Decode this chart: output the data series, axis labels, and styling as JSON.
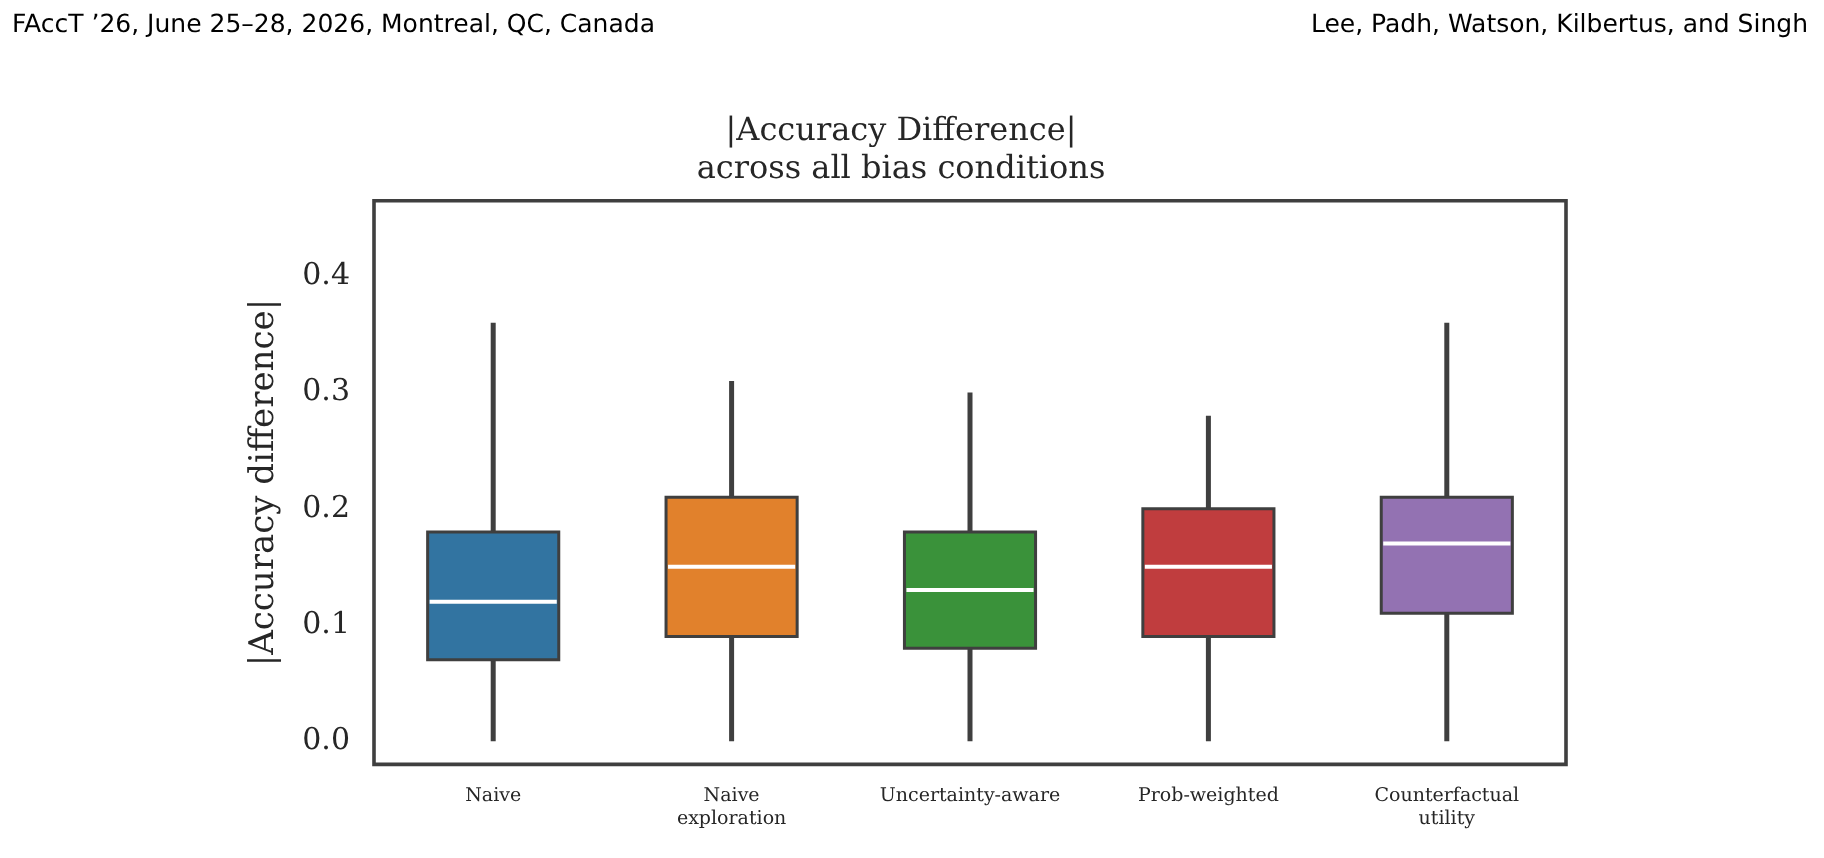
{
  "chart_data": {
    "type": "box",
    "title": "|Accuracy Difference|\nacross all bias conditions",
    "ylabel": "|Accuracy difference|",
    "categories": [
      "Naive",
      "Naive exploration",
      "Uncertainty-aware",
      "Prob-weighted",
      "Counterfactual utility"
    ],
    "colors": [
      "#3274a1",
      "#e1812c",
      "#3a923a",
      "#c03d3e",
      "#9372b2"
    ],
    "boxes": [
      {
        "low": 0,
        "q1": 0.07,
        "median": 0.12,
        "q3": 0.18,
        "high": 0.36
      },
      {
        "low": 0,
        "q1": 0.09,
        "median": 0.15,
        "q3": 0.21,
        "high": 0.31
      },
      {
        "low": 0,
        "q1": 0.08,
        "median": 0.13,
        "q3": 0.18,
        "high": 0.3
      },
      {
        "low": 0,
        "q1": 0.09,
        "median": 0.15,
        "q3": 0.2,
        "high": 0.28
      },
      {
        "low": 0,
        "q1": 0.11,
        "median": 0.17,
        "q3": 0.21,
        "high": 0.36
      }
    ],
    "ylim": [
      -0.02,
      0.465
    ],
    "yticks": [
      {
        "value": 0,
        "label": "0.0"
      },
      0.1,
      0.2,
      0.3,
      0.4
    ],
    "grid": false,
    "legend": false,
    "annotations": [
      "FAccT ’26, June 25–28, 2026, Montreal, QC, Canada",
      "Lee, Padh, Watson, Kilbertus, and Singh"
    ]
  }
}
